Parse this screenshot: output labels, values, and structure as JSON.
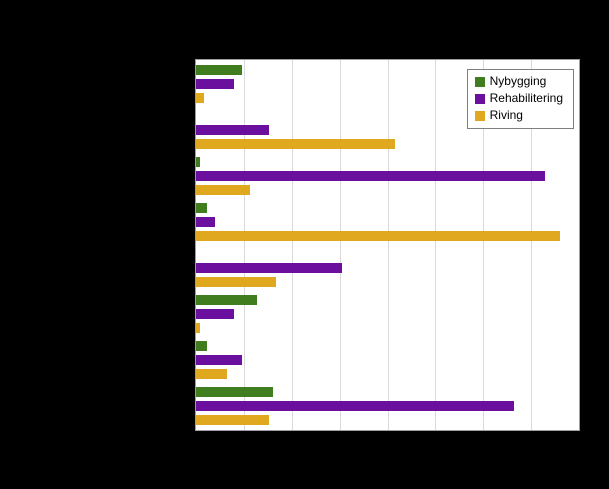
{
  "chart_data": {
    "type": "bar",
    "orientation": "horizontal",
    "title": "",
    "xlabel": "",
    "ylabel": "",
    "categories": [
      "",
      "",
      "",
      "",
      "",
      "",
      "",
      ""
    ],
    "series": [
      {
        "name": "Nybygging",
        "color": "#3f7d1e",
        "values": [
          12,
          0,
          1,
          3,
          0,
          16,
          3,
          20
        ]
      },
      {
        "name": "Rehabilitering",
        "color": "#6a0f9e",
        "values": [
          10,
          19,
          91,
          5,
          38,
          10,
          12,
          83
        ]
      },
      {
        "name": "Riving",
        "color": "#dfa81f",
        "values": [
          2,
          52,
          14,
          95,
          21,
          1,
          8,
          19
        ]
      }
    ],
    "xlim": [
      0,
      100
    ],
    "grid_intervals": 8,
    "grid": true,
    "legend_position": "top-right",
    "background": "#000000",
    "plot_background": "#ffffff",
    "axis_tick_labels_visible": false,
    "category_labels_visible": false
  }
}
